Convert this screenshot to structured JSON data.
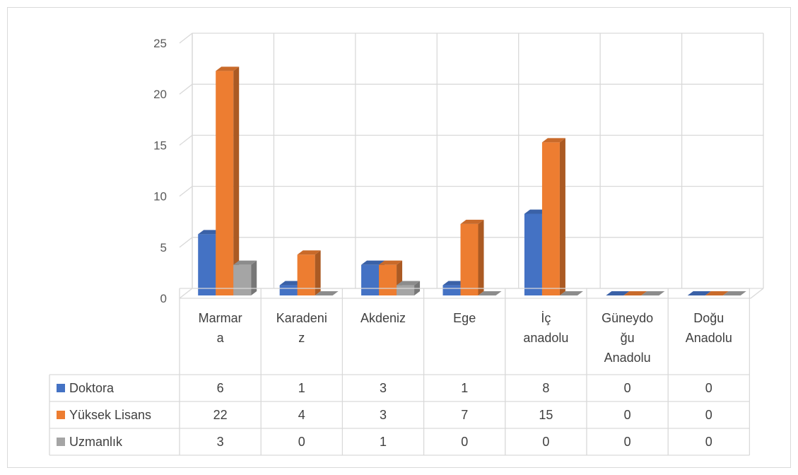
{
  "chart_data": {
    "type": "bar",
    "title": "",
    "xlabel": "",
    "ylabel": "",
    "ylim": [
      0,
      25
    ],
    "yticks": [
      0,
      5,
      10,
      15,
      20,
      25
    ],
    "grid": true,
    "legend": "data-table",
    "categories": [
      [
        "Marmar",
        "a"
      ],
      [
        "Karadeni",
        "z"
      ],
      [
        "Akdeniz"
      ],
      [
        "Ege"
      ],
      [
        "İç",
        "anadolu"
      ],
      [
        "Güneydo",
        "ğu",
        "Anadolu"
      ],
      [
        "Doğu",
        "Anadolu"
      ]
    ],
    "series": [
      {
        "name": "Doktora",
        "color": "#4472c4",
        "values": [
          6,
          1,
          3,
          1,
          8,
          0,
          0
        ]
      },
      {
        "name": "Yüksek Lisans",
        "color": "#ed7d31",
        "values": [
          22,
          4,
          3,
          7,
          15,
          0,
          0
        ]
      },
      {
        "name": "Uzmanlık",
        "color": "#a5a5a5",
        "values": [
          3,
          0,
          1,
          0,
          0,
          0,
          0
        ]
      }
    ]
  }
}
